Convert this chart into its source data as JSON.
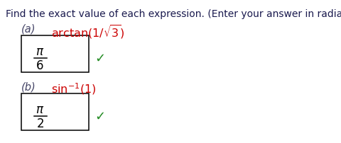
{
  "bg_color": "#ffffff",
  "header_text": "Find the exact value of each expression. (Enter your answer in radians.)",
  "header_color": "#1a1a4e",
  "header_fontsize": 10.0,
  "part_a_label": "(a)",
  "part_a_expr_color": "#cc0000",
  "part_a_answer_num": "π",
  "part_a_answer_den": "6",
  "part_b_label": "(b)",
  "part_b_answer_num": "π",
  "part_b_answer_den": "2",
  "box_color": "#000000",
  "answer_color": "#000000",
  "checkmark_color": "#228B22",
  "label_color": "#444466",
  "label_fontsize": 10.5,
  "expr_fontsize": 11.5,
  "answer_fontsize": 12,
  "checkmark_fontsize": 13
}
